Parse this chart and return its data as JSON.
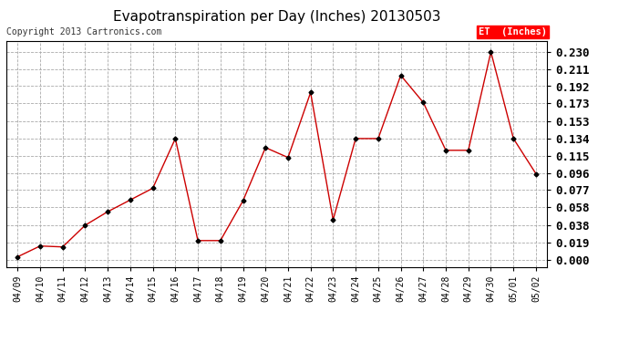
{
  "title": "Evapotranspiration per Day (Inches) 20130503",
  "copyright": "Copyright 2013 Cartronics.com",
  "legend_label": "ET  (Inches)",
  "x_labels": [
    "04/09",
    "04/10",
    "04/11",
    "04/12",
    "04/13",
    "04/14",
    "04/15",
    "04/16",
    "04/17",
    "04/18",
    "04/19",
    "04/20",
    "04/21",
    "04/22",
    "04/23",
    "04/24",
    "04/25",
    "04/26",
    "04/27",
    "04/28",
    "04/29",
    "04/30",
    "05/01",
    "05/02"
  ],
  "y_values": [
    0.003,
    0.015,
    0.014,
    0.038,
    0.053,
    0.066,
    0.079,
    0.134,
    0.021,
    0.021,
    0.065,
    0.124,
    0.113,
    0.185,
    0.044,
    0.134,
    0.134,
    0.204,
    0.174,
    0.121,
    0.121,
    0.23,
    0.134,
    0.095
  ],
  "line_color": "#cc0000",
  "marker_color": "#000000",
  "y_ticks": [
    0.0,
    0.019,
    0.038,
    0.058,
    0.077,
    0.096,
    0.115,
    0.134,
    0.153,
    0.173,
    0.192,
    0.211,
    0.23
  ],
  "ylim": [
    -0.008,
    0.242
  ],
  "background_color": "#ffffff",
  "grid_color": "#aaaaaa",
  "title_fontsize": 11,
  "copyright_fontsize": 7,
  "ytick_fontsize": 9,
  "xtick_fontsize": 7,
  "legend_bg": "#ff0000",
  "legend_text_color": "#ffffff",
  "legend_fontsize": 7.5
}
